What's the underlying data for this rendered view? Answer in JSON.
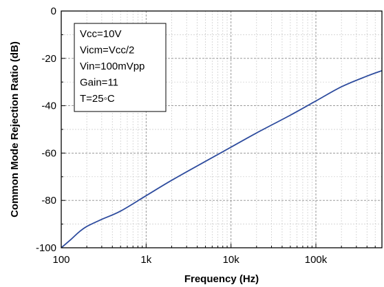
{
  "chart_data": {
    "type": "line",
    "title": "",
    "xlabel": "Frequency (Hz)",
    "ylabel": "Common Mode Rejection Ratio (dB)",
    "x_scale": "log",
    "xlim": [
      100,
      600000
    ],
    "ylim": [
      -100,
      0
    ],
    "x_ticks": [
      {
        "value": 100,
        "label": "100"
      },
      {
        "value": 1000,
        "label": "1k"
      },
      {
        "value": 10000,
        "label": "10k"
      },
      {
        "value": 100000,
        "label": "100k"
      }
    ],
    "y_ticks": [
      {
        "value": 0,
        "label": "0"
      },
      {
        "value": -20,
        "label": "-20"
      },
      {
        "value": -40,
        "label": "-40"
      },
      {
        "value": -60,
        "label": "-60"
      },
      {
        "value": -80,
        "label": "-80"
      },
      {
        "value": -100,
        "label": "-100"
      }
    ],
    "grid": true,
    "annotation": {
      "lines": [
        "Vcc=10V",
        "Vicm=Vcc/2",
        "Vin=100mVpp",
        "Gain=11",
        "T=25◦C"
      ],
      "position": "top-left"
    },
    "series": [
      {
        "color": "#2e4c9e",
        "points": [
          [
            100,
            -100
          ],
          [
            130,
            -96.5
          ],
          [
            160,
            -93.5
          ],
          [
            200,
            -91
          ],
          [
            300,
            -88
          ],
          [
            500,
            -84.5
          ],
          [
            1000,
            -78
          ],
          [
            2000,
            -71.5
          ],
          [
            5000,
            -63.5
          ],
          [
            10000,
            -57.5
          ],
          [
            20000,
            -51.5
          ],
          [
            50000,
            -44
          ],
          [
            100000,
            -38
          ],
          [
            200000,
            -32
          ],
          [
            400000,
            -27.5
          ],
          [
            600000,
            -25.2
          ]
        ]
      }
    ]
  }
}
